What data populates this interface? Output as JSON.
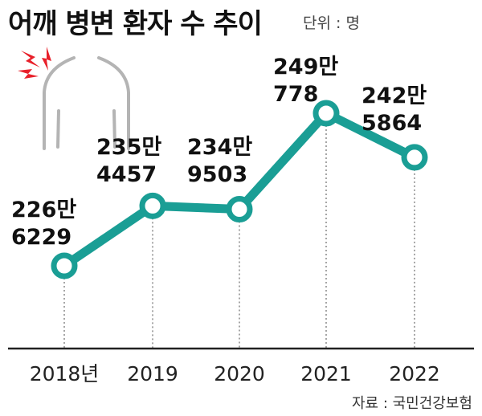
{
  "header": {
    "title": "어깨 병변 환자 수 추이",
    "unit_label": "단위 : 명"
  },
  "footer": {
    "source": "자료 : 국민건강보험"
  },
  "colors": {
    "line": "#1a9e95",
    "marker_fill": "#ffffff",
    "dropline": "#888888",
    "axis": "#222222",
    "pain_mark": "#e8202a",
    "body_outline": "#b4b4b4"
  },
  "icons": [
    "shoulder-pain-illustration-icon",
    "pain-burst-icon"
  ],
  "chart_data": {
    "type": "line",
    "categories": [
      "2018년",
      "2019",
      "2020",
      "2021",
      "2022"
    ],
    "values": [
      2266229,
      2354457,
      2349503,
      2490778,
      2425864
    ],
    "value_labels": [
      [
        "226만",
        "6229"
      ],
      [
        "235만",
        "4457"
      ],
      [
        "234만",
        "9503"
      ],
      [
        "249만",
        "778"
      ],
      [
        "242만",
        "5864"
      ]
    ],
    "title": "어깨 병변 환자 수 추이",
    "unit": "단위 : 명",
    "grid": false,
    "legend": "none"
  }
}
